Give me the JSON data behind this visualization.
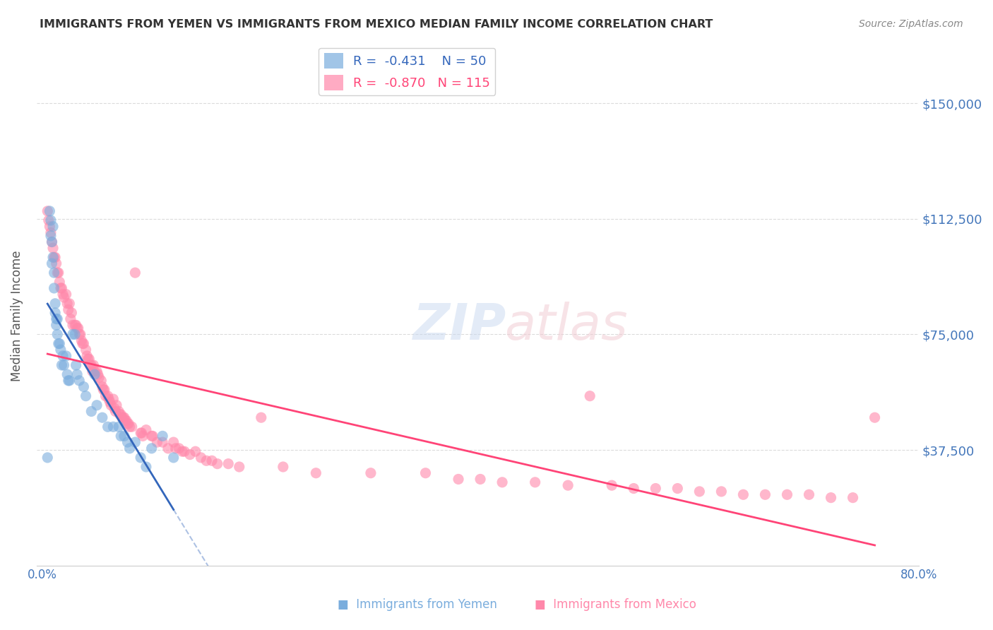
{
  "title": "IMMIGRANTS FROM YEMEN VS IMMIGRANTS FROM MEXICO MEDIAN FAMILY INCOME CORRELATION CHART",
  "source": "Source: ZipAtlas.com",
  "ylabel": "Median Family Income",
  "ytick_labels": [
    "$37,500",
    "$75,000",
    "$112,500",
    "$150,000"
  ],
  "ytick_values": [
    37500,
    75000,
    112500,
    150000
  ],
  "ylim": [
    0,
    162000
  ],
  "xlim": [
    0.0,
    0.8
  ],
  "title_color": "#333333",
  "source_color": "#888888",
  "axis_label_color": "#4477bb",
  "grid_color": "#cccccc",
  "background_color": "#ffffff",
  "yemen_color": "#7aaddd",
  "mexico_color": "#ff88aa",
  "trend_yemen_color": "#3366bb",
  "trend_mexico_color": "#ff4477",
  "yemen_scatter": [
    [
      0.005,
      35000
    ],
    [
      0.007,
      115000
    ],
    [
      0.008,
      112000
    ],
    [
      0.008,
      107000
    ],
    [
      0.009,
      105000
    ],
    [
      0.009,
      98000
    ],
    [
      0.01,
      110000
    ],
    [
      0.01,
      100000
    ],
    [
      0.011,
      95000
    ],
    [
      0.011,
      90000
    ],
    [
      0.012,
      85000
    ],
    [
      0.012,
      82000
    ],
    [
      0.013,
      80000
    ],
    [
      0.013,
      78000
    ],
    [
      0.014,
      80000
    ],
    [
      0.014,
      75000
    ],
    [
      0.015,
      72000
    ],
    [
      0.016,
      72000
    ],
    [
      0.017,
      70000
    ],
    [
      0.018,
      65000
    ],
    [
      0.019,
      68000
    ],
    [
      0.02,
      65000
    ],
    [
      0.022,
      68000
    ],
    [
      0.023,
      62000
    ],
    [
      0.024,
      60000
    ],
    [
      0.025,
      60000
    ],
    [
      0.028,
      75000
    ],
    [
      0.03,
      75000
    ],
    [
      0.031,
      65000
    ],
    [
      0.032,
      62000
    ],
    [
      0.034,
      60000
    ],
    [
      0.038,
      58000
    ],
    [
      0.04,
      55000
    ],
    [
      0.045,
      50000
    ],
    [
      0.048,
      62000
    ],
    [
      0.05,
      52000
    ],
    [
      0.055,
      48000
    ],
    [
      0.06,
      45000
    ],
    [
      0.065,
      45000
    ],
    [
      0.07,
      45000
    ],
    [
      0.072,
      42000
    ],
    [
      0.075,
      42000
    ],
    [
      0.078,
      40000
    ],
    [
      0.08,
      38000
    ],
    [
      0.085,
      40000
    ],
    [
      0.09,
      35000
    ],
    [
      0.095,
      32000
    ],
    [
      0.1,
      38000
    ],
    [
      0.11,
      42000
    ],
    [
      0.12,
      35000
    ]
  ],
  "mexico_scatter": [
    [
      0.005,
      115000
    ],
    [
      0.006,
      112000
    ],
    [
      0.007,
      110000
    ],
    [
      0.008,
      108000
    ],
    [
      0.009,
      105000
    ],
    [
      0.01,
      103000
    ],
    [
      0.011,
      100000
    ],
    [
      0.012,
      100000
    ],
    [
      0.013,
      98000
    ],
    [
      0.014,
      95000
    ],
    [
      0.015,
      95000
    ],
    [
      0.016,
      92000
    ],
    [
      0.017,
      90000
    ],
    [
      0.018,
      90000
    ],
    [
      0.019,
      88000
    ],
    [
      0.02,
      87000
    ],
    [
      0.022,
      88000
    ],
    [
      0.023,
      85000
    ],
    [
      0.024,
      83000
    ],
    [
      0.025,
      85000
    ],
    [
      0.026,
      80000
    ],
    [
      0.027,
      82000
    ],
    [
      0.028,
      78000
    ],
    [
      0.03,
      78000
    ],
    [
      0.031,
      78000
    ],
    [
      0.032,
      77000
    ],
    [
      0.033,
      77000
    ],
    [
      0.034,
      75000
    ],
    [
      0.035,
      75000
    ],
    [
      0.036,
      73000
    ],
    [
      0.037,
      72000
    ],
    [
      0.038,
      72000
    ],
    [
      0.04,
      70000
    ],
    [
      0.041,
      68000
    ],
    [
      0.042,
      67000
    ],
    [
      0.043,
      67000
    ],
    [
      0.044,
      65000
    ],
    [
      0.045,
      65000
    ],
    [
      0.046,
      63000
    ],
    [
      0.047,
      65000
    ],
    [
      0.048,
      63000
    ],
    [
      0.05,
      63000
    ],
    [
      0.051,
      62000
    ],
    [
      0.052,
      61000
    ],
    [
      0.054,
      60000
    ],
    [
      0.055,
      58000
    ],
    [
      0.056,
      57000
    ],
    [
      0.057,
      57000
    ],
    [
      0.058,
      55000
    ],
    [
      0.06,
      55000
    ],
    [
      0.061,
      54000
    ],
    [
      0.062,
      53000
    ],
    [
      0.063,
      52000
    ],
    [
      0.065,
      54000
    ],
    [
      0.066,
      51000
    ],
    [
      0.067,
      50000
    ],
    [
      0.068,
      52000
    ],
    [
      0.07,
      50000
    ],
    [
      0.071,
      49000
    ],
    [
      0.072,
      49000
    ],
    [
      0.073,
      48000
    ],
    [
      0.074,
      48000
    ],
    [
      0.075,
      48000
    ],
    [
      0.076,
      47000
    ],
    [
      0.077,
      47000
    ],
    [
      0.078,
      46000
    ],
    [
      0.079,
      46000
    ],
    [
      0.08,
      45000
    ],
    [
      0.082,
      45000
    ],
    [
      0.085,
      95000
    ],
    [
      0.09,
      43000
    ],
    [
      0.091,
      43000
    ],
    [
      0.092,
      42000
    ],
    [
      0.095,
      44000
    ],
    [
      0.1,
      42000
    ],
    [
      0.101,
      42000
    ],
    [
      0.105,
      40000
    ],
    [
      0.11,
      40000
    ],
    [
      0.115,
      38000
    ],
    [
      0.12,
      40000
    ],
    [
      0.122,
      38000
    ],
    [
      0.125,
      38000
    ],
    [
      0.128,
      37000
    ],
    [
      0.13,
      37000
    ],
    [
      0.135,
      36000
    ],
    [
      0.14,
      37000
    ],
    [
      0.145,
      35000
    ],
    [
      0.15,
      34000
    ],
    [
      0.155,
      34000
    ],
    [
      0.16,
      33000
    ],
    [
      0.17,
      33000
    ],
    [
      0.18,
      32000
    ],
    [
      0.2,
      48000
    ],
    [
      0.22,
      32000
    ],
    [
      0.25,
      30000
    ],
    [
      0.3,
      30000
    ],
    [
      0.35,
      30000
    ],
    [
      0.38,
      28000
    ],
    [
      0.4,
      28000
    ],
    [
      0.42,
      27000
    ],
    [
      0.45,
      27000
    ],
    [
      0.48,
      26000
    ],
    [
      0.5,
      55000
    ],
    [
      0.52,
      26000
    ],
    [
      0.54,
      25000
    ],
    [
      0.56,
      25000
    ],
    [
      0.58,
      25000
    ],
    [
      0.6,
      24000
    ],
    [
      0.62,
      24000
    ],
    [
      0.64,
      23000
    ],
    [
      0.66,
      23000
    ],
    [
      0.68,
      23000
    ],
    [
      0.7,
      23000
    ],
    [
      0.72,
      22000
    ],
    [
      0.74,
      22000
    ],
    [
      0.76,
      48000
    ]
  ]
}
